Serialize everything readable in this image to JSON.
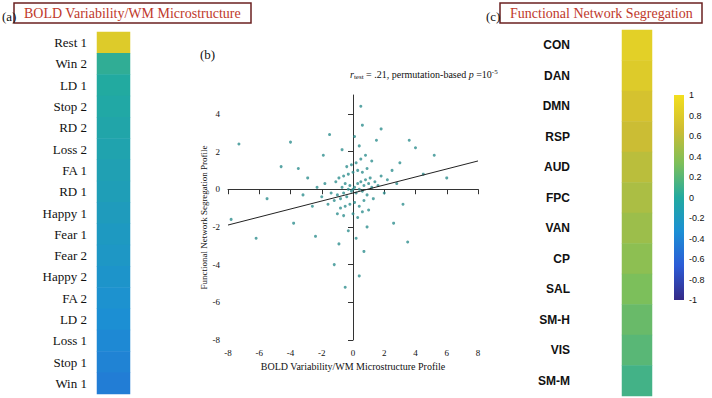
{
  "chart_data": [
    {
      "type": "heatmap",
      "panel_label": "(a)",
      "title": "BOLD Variability/WM Microstructure",
      "categories": [
        "Rest 1",
        "Win 2",
        "LD 1",
        "Stop 2",
        "RD 2",
        "Loss 2",
        "FA 1",
        "RD 1",
        "Happy 1",
        "Fear 1",
        "Fear 2",
        "Happy 2",
        "FA 2",
        "LD 2",
        "Loss 1",
        "Stop 1",
        "Win 1"
      ],
      "values": [
        0.8,
        0.05,
        0.0,
        -0.03,
        -0.06,
        -0.09,
        -0.12,
        -0.15,
        -0.18,
        -0.21,
        -0.24,
        -0.27,
        -0.3,
        -0.33,
        -0.37,
        -0.41,
        -0.45
      ],
      "color_range": [
        -1,
        1
      ]
    },
    {
      "type": "scatter",
      "panel_label": "(b)",
      "x_label": "BOLD Variability/WM Microstructure Profile",
      "y_label": "Functional Network Segregation Profile",
      "annotation": [
        {
          "text": "r",
          "style": "italic"
        },
        {
          "text": "test",
          "style": "sub"
        },
        {
          "text": " = .21, permutation-based "
        },
        {
          "text": "p",
          "style": "italic"
        },
        {
          "text": " =10"
        },
        {
          "text": "-5",
          "style": "sup"
        }
      ],
      "color": "#2f8f8f",
      "marker": "circle",
      "grid": false,
      "xlim": [
        -8,
        8
      ],
      "xticks": [
        -8,
        -6,
        -4,
        -2,
        0,
        2,
        4,
        6,
        8
      ],
      "ylim": [
        -8,
        5
      ],
      "yticks": [
        -8,
        -6,
        -4,
        -2,
        0,
        2,
        4
      ],
      "fit": {
        "x": [
          -8,
          8
        ],
        "y": [
          -1.9,
          1.5
        ],
        "color": "#222222",
        "line_style": "solid"
      },
      "points": [
        [
          -1.2,
          -0.6
        ],
        [
          -1.0,
          -0.3
        ],
        [
          -0.8,
          -0.5
        ],
        [
          -0.7,
          0.1
        ],
        [
          -0.6,
          -0.2
        ],
        [
          -0.5,
          0.3
        ],
        [
          -0.4,
          -0.4
        ],
        [
          -0.3,
          0.0
        ],
        [
          -0.2,
          0.2
        ],
        [
          -0.1,
          -0.1
        ],
        [
          0,
          0
        ],
        [
          0.1,
          0.1
        ],
        [
          0.2,
          -0.2
        ],
        [
          0.3,
          0.3
        ],
        [
          0.4,
          0.0
        ],
        [
          0.5,
          0.4
        ],
        [
          0.6,
          -0.1
        ],
        [
          0.7,
          0.2
        ],
        [
          0.8,
          0.5
        ],
        [
          0.9,
          -0.3
        ],
        [
          1.0,
          0.3
        ],
        [
          1.1,
          0.6
        ],
        [
          1.2,
          0.1
        ],
        [
          1.4,
          0.4
        ],
        [
          -1.4,
          -0.2
        ],
        [
          -1.1,
          0.4
        ],
        [
          -0.9,
          0.6
        ],
        [
          -0.6,
          0.7
        ],
        [
          -0.3,
          0.8
        ],
        [
          0.0,
          0.9
        ],
        [
          0.3,
          1.0
        ],
        [
          0.6,
          0.9
        ],
        [
          0.9,
          1.1
        ],
        [
          -0.2,
          -0.8
        ],
        [
          0.1,
          -0.7
        ],
        [
          0.4,
          -0.9
        ],
        [
          0.7,
          -0.6
        ],
        [
          -0.5,
          -0.9
        ],
        [
          -0.8,
          -1.0
        ],
        [
          1.3,
          -0.5
        ],
        [
          1.6,
          0.2
        ],
        [
          1.8,
          0.7
        ],
        [
          2.0,
          -0.2
        ],
        [
          2.2,
          0.5
        ],
        [
          -1.6,
          -0.8
        ],
        [
          -1.8,
          0.3
        ],
        [
          -2.0,
          -0.4
        ],
        [
          -2.3,
          0.1
        ],
        [
          0.2,
          1.4
        ],
        [
          0.5,
          1.6
        ],
        [
          -0.1,
          1.3
        ],
        [
          0.8,
          1.8
        ],
        [
          1.2,
          1.5
        ],
        [
          -0.4,
          1.2
        ],
        [
          0.0,
          -1.3
        ],
        [
          0.3,
          -1.5
        ],
        [
          -0.6,
          -1.4
        ],
        [
          0.6,
          -1.2
        ],
        [
          1.0,
          -1.1
        ],
        [
          -1.0,
          -1.3
        ],
        [
          2.5,
          1.0
        ],
        [
          2.8,
          0.3
        ],
        [
          3.0,
          1.4
        ],
        [
          -2.6,
          -0.9
        ],
        [
          -2.9,
          0.6
        ],
        [
          -3.2,
          -0.3
        ],
        [
          0.4,
          2.3
        ],
        [
          0.1,
          2.8
        ],
        [
          0.6,
          3.4
        ],
        [
          0.5,
          4.4
        ],
        [
          1.5,
          2.6
        ],
        [
          -0.7,
          2.1
        ],
        [
          -0.3,
          -2.2
        ],
        [
          0.2,
          -2.6
        ],
        [
          -0.9,
          -2.9
        ],
        [
          0.7,
          -3.3
        ],
        [
          -1.2,
          -4.0
        ],
        [
          0.4,
          -4.6
        ],
        [
          -0.5,
          -5.2
        ],
        [
          3.5,
          -2.8
        ],
        [
          4.0,
          2.2
        ],
        [
          3.6,
          2.6
        ],
        [
          4.5,
          0.8
        ],
        [
          6.0,
          0.6
        ],
        [
          5.2,
          1.8
        ],
        [
          -4.0,
          2.5
        ],
        [
          -3.8,
          -1.8
        ],
        [
          -5.5,
          -0.5
        ],
        [
          -6.2,
          -2.6
        ],
        [
          -7.8,
          -1.6
        ],
        [
          -7.3,
          2.4
        ],
        [
          -4.6,
          1.2
        ],
        [
          2.6,
          -1.8
        ],
        [
          -2.4,
          -2.5
        ],
        [
          1.8,
          3.2
        ],
        [
          -1.5,
          2.9
        ],
        [
          3.2,
          -0.8
        ],
        [
          -3.5,
          1.1
        ],
        [
          0.9,
          -2.0
        ],
        [
          -1.9,
          1.8
        ]
      ]
    },
    {
      "type": "heatmap",
      "panel_label": "(c)",
      "title": "Functional Network Segregation",
      "categories": [
        "CON",
        "DAN",
        "DMN",
        "RSP",
        "AUD",
        "FPC",
        "VAN",
        "CP",
        "SAL",
        "SM-H",
        "VIS",
        "SM-M"
      ],
      "values": [
        0.85,
        0.8,
        0.72,
        0.65,
        0.58,
        0.52,
        0.46,
        0.4,
        0.33,
        0.26,
        0.2,
        0.12
      ],
      "colorbar": {
        "range": [
          -1,
          1
        ],
        "ticks": [
          1,
          0.8,
          0.6,
          0.4,
          0.2,
          0,
          -0.2,
          -0.4,
          -0.6,
          -0.8,
          -1
        ],
        "colors": [
          "#352a87",
          "#2c5bd6",
          "#1c8fd4",
          "#22aaa0",
          "#7dbf5a",
          "#cfbd32",
          "#f3df1e"
        ]
      }
    }
  ]
}
